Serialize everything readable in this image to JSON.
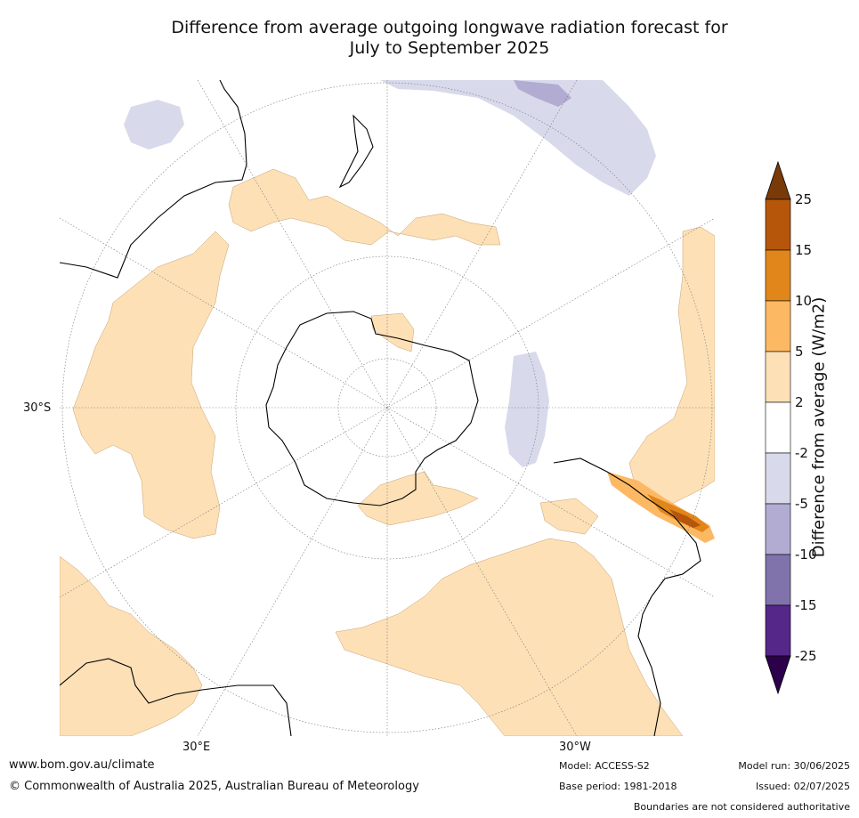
{
  "title_line1": "Difference from average outgoing longwave radiation forecast for",
  "title_line2": "July to September 2025",
  "map": {
    "projection": "south-polar-stereographic",
    "lat_label": "30°S",
    "lon_labels": [
      "30°E",
      "30°W"
    ]
  },
  "colorbar": {
    "title": "Difference from average (W/m2)",
    "tick_labels": [
      "25",
      "15",
      "10",
      "5",
      "2",
      "-2",
      "-5",
      "-10",
      "-15",
      "-25"
    ],
    "colors_top_to_bottom": [
      "#7a3a08",
      "#b5560b",
      "#e0861a",
      "#fdb863",
      "#fde0b6",
      "#ffffff",
      "#d8daeb",
      "#b2abd2",
      "#8073ac",
      "#542788",
      "#2d004b"
    ]
  },
  "footer": {
    "url": "www.bom.gov.au/climate",
    "copyright": "© Commonwealth of Australia 2025, Australian Bureau of Meteorology",
    "model": "Model: ACCESS-S2",
    "base_period": "Base period: 1981-2018",
    "model_run": "Model run: 30/06/2025",
    "issued": "Issued: 02/07/2025",
    "disclaimer": "Boundaries are not considered authoritative"
  }
}
